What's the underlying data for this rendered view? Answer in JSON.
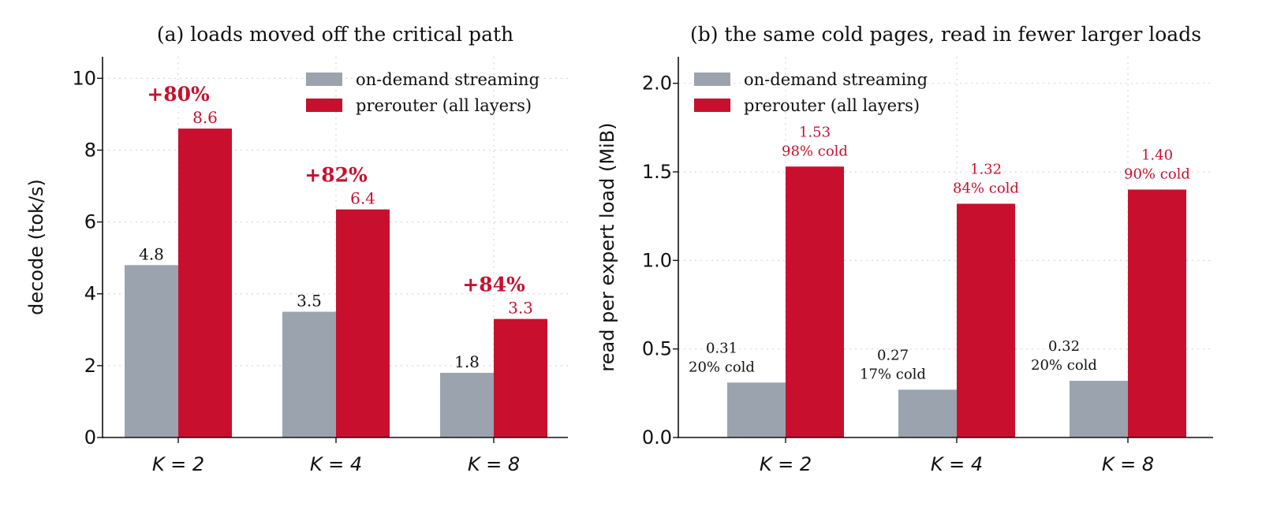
{
  "colors": {
    "streaming": "#9aa3ae",
    "prerouter": "#c8102e",
    "label_dark": "#111111",
    "label_red": "#c8102e"
  },
  "chart_data": [
    {
      "type": "bar",
      "title": "(a) loads moved off the critical path",
      "xlabel": "",
      "ylabel": "decode (tok/s)",
      "categories": [
        "K = 2",
        "K = 4",
        "K = 8"
      ],
      "ylim": [
        0,
        10.6
      ],
      "yticks": [
        0,
        2,
        4,
        6,
        8,
        10
      ],
      "ytick_labels": [
        "0",
        "2",
        "4",
        "6",
        "8",
        "10"
      ],
      "grid": true,
      "legend": "top-right",
      "series": [
        {
          "name": "on-demand streaming",
          "values": [
            4.8,
            3.5,
            1.8
          ],
          "labels": [
            "4.8",
            "3.5",
            "1.8"
          ]
        },
        {
          "name": "prerouter (all layers)",
          "values": [
            8.6,
            6.35,
            3.3
          ],
          "labels": [
            "8.6",
            "6.4",
            "3.3"
          ]
        }
      ],
      "annotations": [
        "+80%",
        "+82%",
        "+84%"
      ]
    },
    {
      "type": "bar",
      "title": "(b) the same cold pages, read in fewer larger loads",
      "xlabel": "",
      "ylabel": "read per expert load (MiB)",
      "categories": [
        "K = 2",
        "K = 4",
        "K = 8"
      ],
      "ylim": [
        0,
        2.15
      ],
      "yticks": [
        0,
        0.5,
        1.0,
        1.5,
        2.0
      ],
      "ytick_labels": [
        "0.0",
        "0.5",
        "1.0",
        "1.5",
        "2.0"
      ],
      "grid": true,
      "legend": "top-left",
      "series": [
        {
          "name": "on-demand streaming",
          "values": [
            0.31,
            0.27,
            0.32
          ],
          "labels": [
            "0.31",
            "0.27",
            "0.32"
          ],
          "sublabels": [
            "20% cold",
            "17% cold",
            "20% cold"
          ]
        },
        {
          "name": "prerouter (all layers)",
          "values": [
            1.53,
            1.32,
            1.4
          ],
          "labels": [
            "1.53",
            "1.32",
            "1.40"
          ],
          "sublabels": [
            "98% cold",
            "84% cold",
            "90% cold"
          ]
        }
      ]
    }
  ]
}
